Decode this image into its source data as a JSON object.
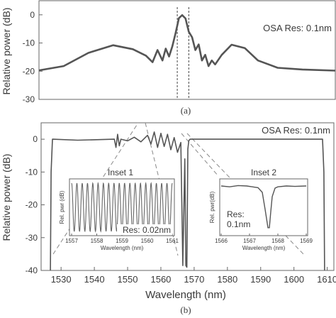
{
  "chart_data": [
    {
      "panel_label": "(a)",
      "type": "line",
      "ylabel": "Relative power (dB)",
      "xlabel": "",
      "yticks": [
        "0",
        "-10",
        "-20",
        "-30"
      ],
      "ylim": [
        -30,
        5
      ],
      "xlim": [
        1549.5,
        1567.5
      ],
      "annotation": "OSA Res: 0.1nm",
      "dashed_markers_x": [
        1557.9,
        1558.6
      ],
      "series": [
        {
          "x": [
            1549.5,
            1551.0,
            1552.5,
            1554.0,
            1555.2,
            1556.0,
            1556.4,
            1556.7,
            1557.0,
            1557.2,
            1557.4,
            1557.6,
            1557.8,
            1558.0,
            1558.2,
            1558.4,
            1558.6,
            1558.8,
            1559.0,
            1559.2,
            1559.4,
            1559.6,
            1559.8,
            1560.0,
            1560.2,
            1560.6,
            1561.2,
            1562.0,
            1562.8,
            1564.0,
            1565.5,
            1567.5
          ],
          "y": [
            -19.7,
            -18.2,
            -13.5,
            -10.8,
            -12.2,
            -14.5,
            -16.8,
            -12.5,
            -16.2,
            -12.0,
            -14.8,
            -11.2,
            -6.5,
            -1.2,
            -0.1,
            -1.3,
            -6.0,
            -8.0,
            -12.5,
            -10.5,
            -16.2,
            -14.2,
            -18.2,
            -16.2,
            -17.6,
            -14.2,
            -10.6,
            -11.8,
            -16.2,
            -18.8,
            -19.4,
            -19.8
          ]
        }
      ]
    },
    {
      "panel_label": "(b)",
      "type": "line",
      "ylabel": "Relative power (dB)",
      "xlabel": "Wavelength (nm)",
      "xticks": [
        "1530",
        "1540",
        "1550",
        "1560",
        "1570",
        "1580",
        "1590",
        "1600",
        "1610"
      ],
      "yticks": [
        "0",
        "-10",
        "-20",
        "-30",
        "-40"
      ],
      "ylim": [
        -40,
        5
      ],
      "xlim": [
        1524,
        1612
      ],
      "annotation": "OSA Res: 0.1nm",
      "series": [
        {
          "x": [
            1526.8,
            1527.0,
            1527.4,
            1535.0,
            1546.0,
            1546.5,
            1547.0,
            1547.5,
            1548.0,
            1550.0,
            1552.0,
            1554.0,
            1556.0,
            1557.0,
            1558.0,
            1559.0,
            1560.0,
            1561.0,
            1562.0,
            1563.0,
            1564.0,
            1565.0,
            1566.0,
            1566.6,
            1567.2,
            1567.5,
            1567.8,
            1568.1,
            1568.4,
            1568.8,
            1570.0,
            1580.0,
            1590.0,
            1600.0,
            1608.6,
            1609.0,
            1609.2
          ],
          "y": [
            -40,
            -10,
            0,
            -0.3,
            0,
            -2.5,
            1.5,
            -2,
            0,
            -0.5,
            0.6,
            -0.8,
            1.2,
            -1.5,
            2.2,
            -2.5,
            1.8,
            -2.2,
            1.5,
            -3.2,
            0.5,
            -4.0,
            -1.0,
            -38.5,
            -6,
            -38.5,
            -39,
            -3,
            -0.4,
            0,
            0,
            0,
            0,
            0,
            0,
            -10,
            -40
          ]
        }
      ],
      "insets": [
        {
          "title": "Inset 1",
          "ylabel": "Rel. pwr (dB)",
          "xlabel": "Wavelength (nm)",
          "xticks": [
            "1557",
            "1558",
            "1559",
            "1560",
            "1561"
          ],
          "xlim": [
            1557,
            1561
          ],
          "fringe_count": 19,
          "annotation": "Res: 0.02nm"
        },
        {
          "title": "Inset 2",
          "ylabel": "Rel. pwr(dB)",
          "xlabel": "Wavelength (nm)",
          "xticks": [
            "1566",
            "1567",
            "1568",
            "1569"
          ],
          "xlim": [
            1566,
            1569
          ],
          "annotation": "Res:\n0.1nm",
          "annotation_lines": [
            "Res:",
            "0.1nm"
          ],
          "series": [
            {
              "x": [
                1566.0,
                1566.3,
                1566.6,
                1566.9,
                1567.1,
                1567.3,
                1567.45,
                1567.55,
                1567.65,
                1567.7,
                1567.75,
                1567.8,
                1567.9,
                1568.0,
                1568.3,
                1568.6,
                1569.0
              ],
              "y": [
                0,
                -0.02,
                0.01,
                0.0,
                -0.02,
                -0.04,
                -0.15,
                -0.55,
                -0.98,
                -0.98,
                -0.6,
                -0.25,
                -0.05,
                -0.02,
                0.0,
                -0.01,
                0.0
              ]
            }
          ]
        }
      ]
    }
  ]
}
